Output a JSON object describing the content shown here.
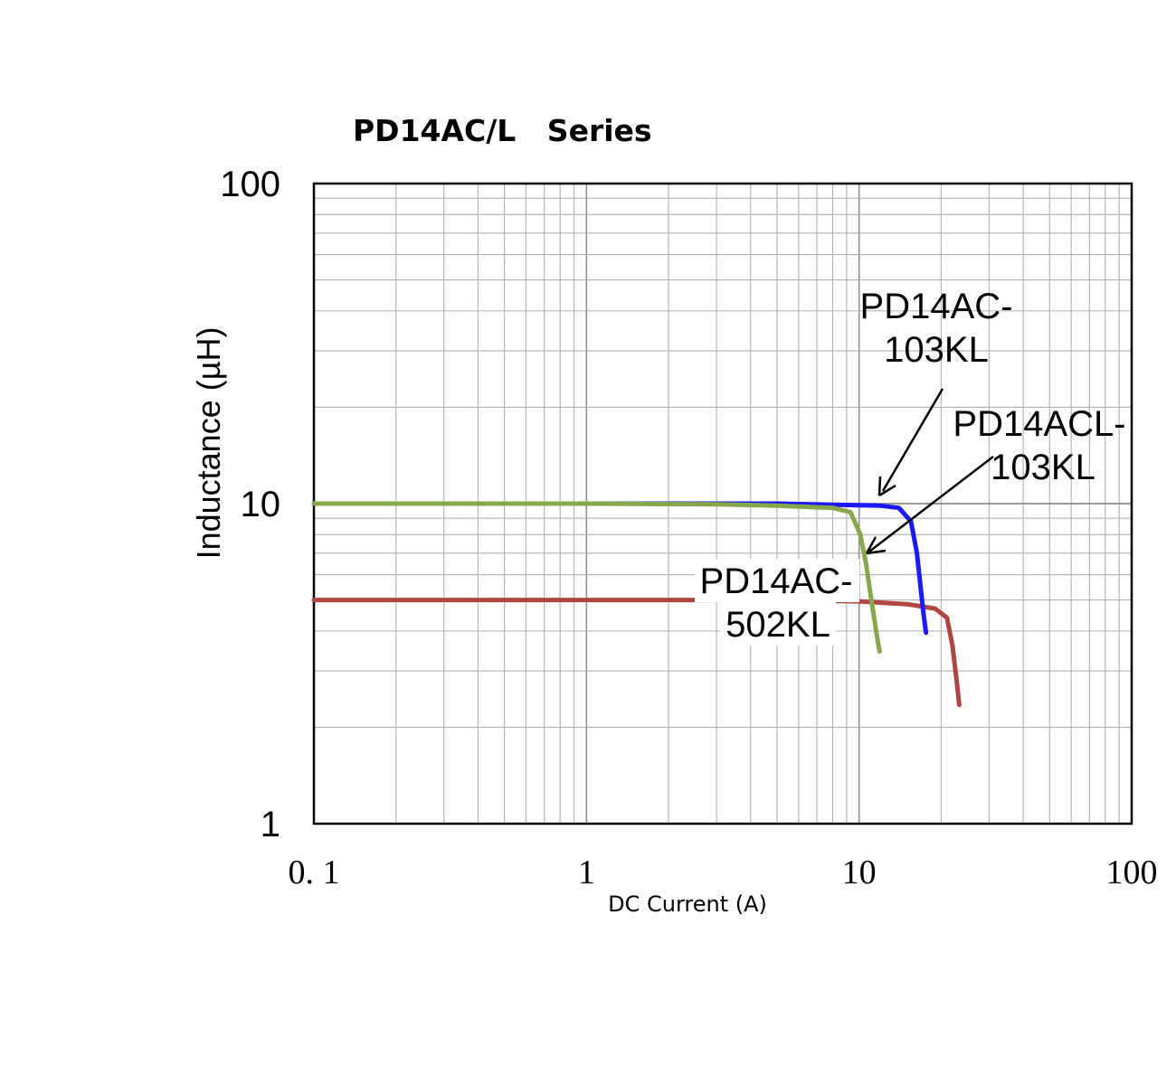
{
  "chart_data": {
    "type": "line",
    "title": "PD14AC/L   Series",
    "xlabel": "DC Current (A)",
    "ylabel": "Inductance (µH)",
    "x_scale": "log",
    "y_scale": "log",
    "xlim": [
      0.1,
      100
    ],
    "ylim": [
      1,
      100
    ],
    "grid": true,
    "x_ticks": [
      {
        "value": 0.1,
        "label": "0. 1"
      },
      {
        "value": 1,
        "label": "1"
      },
      {
        "value": 10,
        "label": "10"
      },
      {
        "value": 100,
        "label": "100"
      }
    ],
    "y_ticks": [
      {
        "value": 1,
        "label": "1"
      },
      {
        "value": 10,
        "label": "10"
      },
      {
        "value": 100,
        "label": "100"
      }
    ],
    "series": [
      {
        "name": "PD14AC-103KL",
        "color": "#1a1aff",
        "points": [
          [
            0.1,
            10.0
          ],
          [
            1,
            10.0
          ],
          [
            3,
            10.0
          ],
          [
            5,
            10.0
          ],
          [
            9,
            9.9
          ],
          [
            12,
            9.85
          ],
          [
            14,
            9.7
          ],
          [
            15.5,
            8.8
          ],
          [
            16.3,
            7.0
          ],
          [
            16.8,
            5.5
          ],
          [
            17.2,
            4.6
          ],
          [
            17.6,
            3.95
          ]
        ]
      },
      {
        "name": "PD14ACL-103KL",
        "color": "#86a74a",
        "points": [
          [
            0.1,
            10.0
          ],
          [
            1,
            10.0
          ],
          [
            3,
            9.95
          ],
          [
            5,
            9.85
          ],
          [
            8,
            9.7
          ],
          [
            9.3,
            9.4
          ],
          [
            10.1,
            8.0
          ],
          [
            10.6,
            6.5
          ],
          [
            11.1,
            5.0
          ],
          [
            11.6,
            3.9
          ],
          [
            11.9,
            3.45
          ]
        ]
      },
      {
        "name": "PD14AC-502KL",
        "color": "#b0463f",
        "points": [
          [
            0.1,
            5.0
          ],
          [
            1,
            5.0
          ],
          [
            5,
            5.0
          ],
          [
            10,
            4.95
          ],
          [
            15,
            4.85
          ],
          [
            19,
            4.7
          ],
          [
            21,
            4.4
          ],
          [
            22,
            3.6
          ],
          [
            22.8,
            2.8
          ],
          [
            23.3,
            2.35
          ]
        ]
      }
    ],
    "annotations": [
      {
        "lines": [
          "PD14AC-",
          "103KL"
        ],
        "series": "PD14AC-103KL"
      },
      {
        "lines": [
          "PD14ACL-",
          "103KL"
        ],
        "series": "PD14ACL-103KL"
      },
      {
        "lines": [
          "PD14AC-",
          "502KL"
        ],
        "series": "PD14AC-502KL"
      }
    ]
  }
}
